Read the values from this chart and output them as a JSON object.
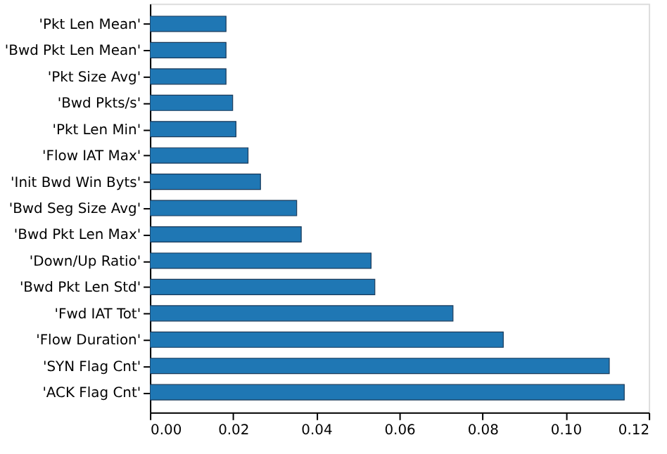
{
  "chart_data": {
    "type": "bar",
    "orientation": "horizontal",
    "categories": [
      "'Pkt Len Mean'",
      "'Bwd Pkt Len Mean'",
      "'Pkt Size Avg'",
      "'Bwd Pkts/s'",
      "'Pkt Len Min'",
      "'Flow IAT Max'",
      "'Init Bwd Win Byts'",
      "'Bwd Seg Size Avg'",
      "'Bwd Pkt Len Max'",
      "'Down/Up Ratio'",
      "'Bwd Pkt Len Std'",
      "'Fwd IAT Tot'",
      "'Flow Duration'",
      "'SYN Flag Cnt'",
      "'ACK Flag Cnt'"
    ],
    "values": [
      0.0183,
      0.0183,
      0.0183,
      0.0199,
      0.0207,
      0.0236,
      0.0266,
      0.0353,
      0.0364,
      0.0532,
      0.0541,
      0.0729,
      0.085,
      0.1105,
      0.1141
    ],
    "color": "#1f77b4",
    "xlim": [
      0,
      0.12
    ],
    "xticks": [
      {
        "value": 0,
        "label": "0.00"
      },
      0.02,
      0.04,
      0.06,
      0.08,
      {
        "value": 0.1,
        "label": "0.10"
      },
      0.12
    ],
    "grid": false
  }
}
